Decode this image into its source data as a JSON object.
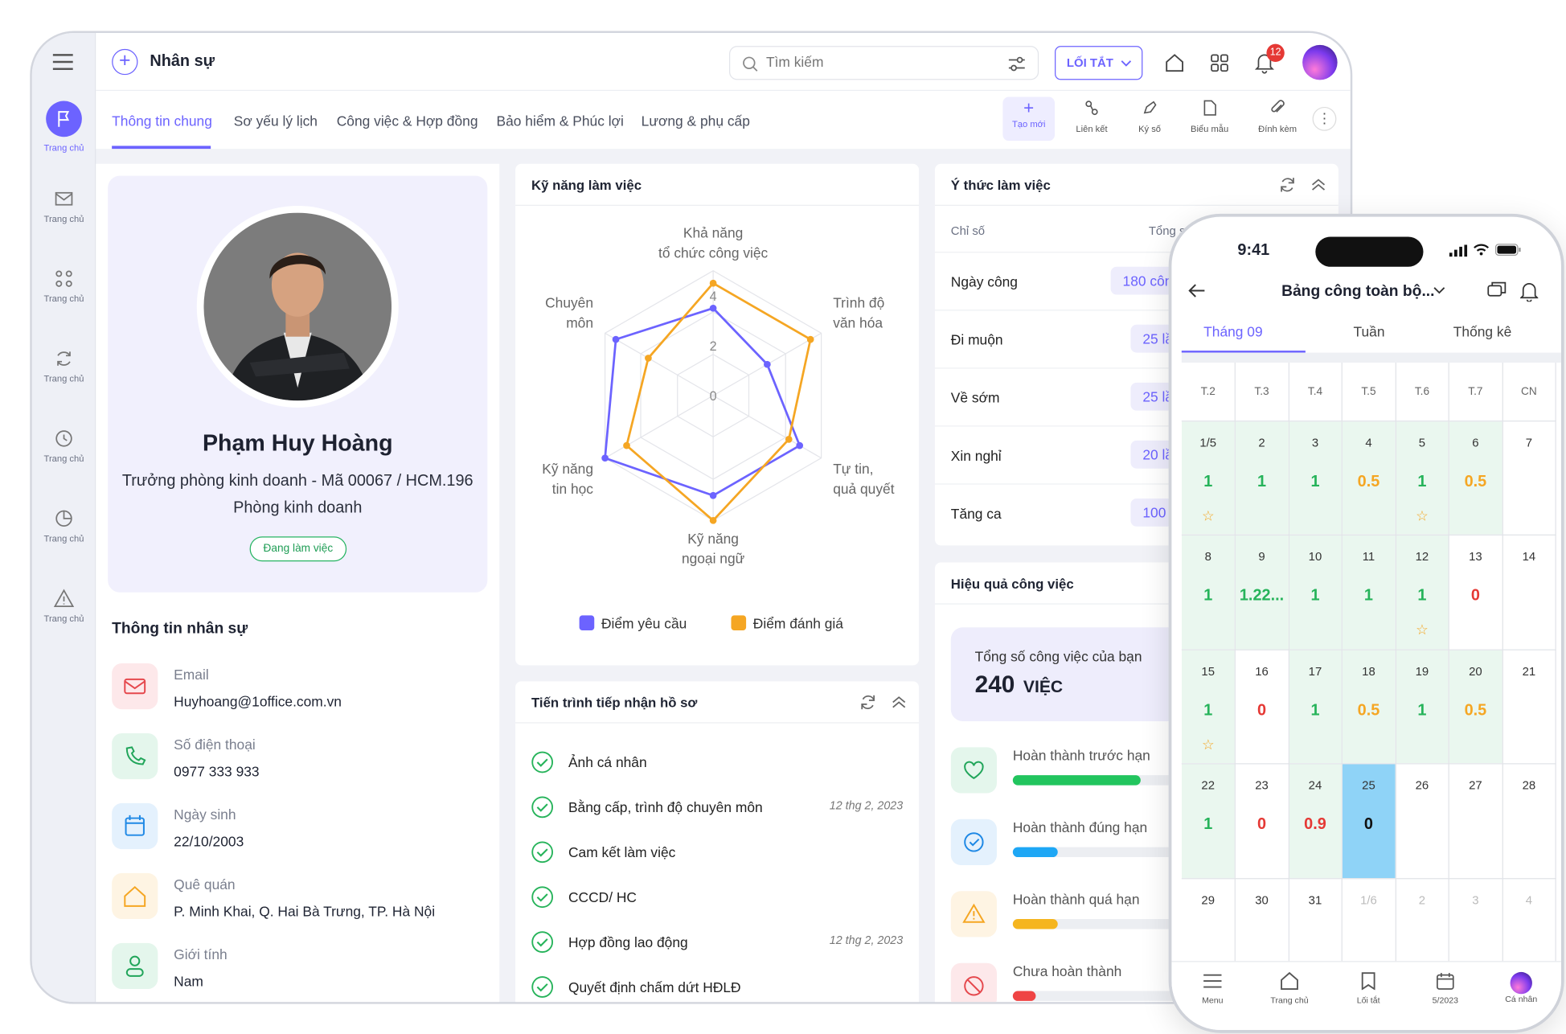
{
  "app": {
    "title": "Nhân sự",
    "search_placeholder": "Tìm kiếm",
    "shortcut_label": "LỐI TẮT",
    "notif_count": "12"
  },
  "sidebar": {
    "items": [
      {
        "label": "Trang chủ",
        "icon": "flag-icon"
      },
      {
        "label": "Trang chủ",
        "icon": "mail-check-icon"
      },
      {
        "label": "Trang chủ",
        "icon": "nodes-icon"
      },
      {
        "label": "Trang chủ",
        "icon": "refresh-icon"
      },
      {
        "label": "Trang chủ",
        "icon": "clock-icon"
      },
      {
        "label": "Trang chủ",
        "icon": "pie-icon"
      },
      {
        "label": "Trang chủ",
        "icon": "warning-icon"
      }
    ]
  },
  "tabs": [
    "Thông tin chung",
    "Sơ yếu lý lịch",
    "Công việc & Hợp đồng",
    "Bảo hiểm & Phúc lợi",
    "Lương & phụ cấp"
  ],
  "actions": [
    "Tạo mới",
    "Liên kết",
    "Ký số",
    "Biểu mẫu",
    "Đính kèm"
  ],
  "profile": {
    "name": "Phạm Huy Hoàng",
    "role": "Trưởng phòng kinh doanh - Mã 00067 / HCM.196",
    "dept": "Phòng kinh doanh",
    "status": "Đang làm việc"
  },
  "info": {
    "title": "Thông tin nhân sự",
    "fields": [
      {
        "label": "Email",
        "value": "Huyhoang@1office.com.vn"
      },
      {
        "label": "Số điện thoại",
        "value": "0977 333 933"
      },
      {
        "label": "Ngày sinh",
        "value": "22/10/2003"
      },
      {
        "label": "Quê quán",
        "value": "P. Minh Khai, Q. Hai Bà Trưng, TP. Hà Nội"
      },
      {
        "label": "Giới tính",
        "value": "Nam"
      }
    ]
  },
  "skills": {
    "title": "Kỹ năng làm việc",
    "legend": [
      "Điểm yêu cầu",
      "Điểm đánh giá"
    ]
  },
  "chart_data": {
    "type": "radar",
    "categories": [
      "Khả năng tổ chức công việc",
      "Trình độ văn hóa",
      "Tự tin, quả quyết",
      "Kỹ năng ngoại ngữ",
      "Kỹ năng tin học",
      "Chuyên môn"
    ],
    "category_lines": [
      [
        "Khả năng",
        "tổ chức công việc"
      ],
      [
        "Trình độ",
        "văn hóa"
      ],
      [
        "Tự tin,",
        "quả quyết"
      ],
      [
        "Kỹ năng",
        "ngoại ngữ"
      ],
      [
        "Kỹ năng",
        "tin học"
      ],
      [
        "Chuyên",
        "môn"
      ]
    ],
    "ticks": [
      "0",
      "2",
      "4"
    ],
    "rmax": 5,
    "series": [
      {
        "name": "Điểm yêu cầu",
        "color": "#6c63ff",
        "values": [
          3.5,
          2.5,
          4,
          4,
          5,
          4.5
        ]
      },
      {
        "name": "Điểm đánh giá",
        "color": "#f5a623",
        "values": [
          4.5,
          4.5,
          3.5,
          5,
          4,
          3
        ]
      }
    ]
  },
  "process": {
    "title": "Tiến trình tiếp nhận hồ sơ",
    "items": [
      {
        "label": "Ảnh cá nhân",
        "date": ""
      },
      {
        "label": "Bằng cấp, trình độ chuyên môn",
        "date": "12 thg 2, 2023"
      },
      {
        "label": "Cam kết làm việc",
        "date": ""
      },
      {
        "label": "CCCD/ HC",
        "date": ""
      },
      {
        "label": "Hợp đồng lao động",
        "date": "12 thg 2, 2023"
      },
      {
        "label": "Quyết định chấm dứt HĐLĐ",
        "date": ""
      }
    ]
  },
  "attitude": {
    "title": "Ý thức làm việc",
    "col1": "Chỉ số",
    "col2": "Tổng số",
    "rows": [
      {
        "label": "Ngày công",
        "value": "180 công"
      },
      {
        "label": "Đi muộn",
        "value": "25 lần"
      },
      {
        "label": "Về sớm",
        "value": "25 lần"
      },
      {
        "label": "Xin nghỉ",
        "value": "20 lần"
      },
      {
        "label": "Tăng ca",
        "value": "100 giờ"
      }
    ]
  },
  "performance": {
    "title": "Hiệu quả công việc",
    "total_label": "Tổng số công việc của bạn",
    "total": "240",
    "unit": "VIỆC",
    "rows": [
      {
        "label": "Hoàn thành trước hạn",
        "progress": 0.85,
        "color": "#22c55e"
      },
      {
        "label": "Hoàn thành đúng hạn",
        "progress": 0.3,
        "color": "#1ea7f5"
      },
      {
        "label": "Hoàn thành quá hạn",
        "progress": 0.3,
        "color": "#f5b51f"
      },
      {
        "label": "Chưa hoàn thành",
        "progress": 0.15,
        "color": "#ef4444"
      }
    ]
  },
  "phone": {
    "time": "9:41",
    "title": "Bảng công toàn bộ...",
    "tabs": [
      "Tháng 09",
      "Tuần",
      "Thống kê"
    ],
    "weekdays": [
      "T.2",
      "T.3",
      "T.4",
      "T.5",
      "T.6",
      "T.7",
      "CN"
    ],
    "weeks": [
      [
        {
          "d": "1/5",
          "v": "1",
          "c": "green",
          "s": true
        },
        {
          "d": "2",
          "v": "1",
          "c": "green"
        },
        {
          "d": "3",
          "v": "1",
          "c": "green"
        },
        {
          "d": "4",
          "v": "0.5",
          "c": "orange"
        },
        {
          "d": "5",
          "v": "1",
          "c": "green",
          "s": true
        },
        {
          "d": "6",
          "v": "0.5",
          "c": "orange"
        },
        {
          "d": "7",
          "v": "",
          "c": "",
          "w": true
        }
      ],
      [
        {
          "d": "8",
          "v": "1",
          "c": "green"
        },
        {
          "d": "9",
          "v": "1.22...",
          "c": "green"
        },
        {
          "d": "10",
          "v": "1",
          "c": "green"
        },
        {
          "d": "11",
          "v": "1",
          "c": "green"
        },
        {
          "d": "12",
          "v": "1",
          "c": "green",
          "s": true
        },
        {
          "d": "13",
          "v": "0",
          "c": "red",
          "w": true
        },
        {
          "d": "14",
          "v": "",
          "c": "",
          "w": true
        }
      ],
      [
        {
          "d": "15",
          "v": "1",
          "c": "green",
          "s": true
        },
        {
          "d": "16",
          "v": "0",
          "c": "red",
          "w": true
        },
        {
          "d": "17",
          "v": "1",
          "c": "green"
        },
        {
          "d": "18",
          "v": "0.5",
          "c": "orange"
        },
        {
          "d": "19",
          "v": "1",
          "c": "green"
        },
        {
          "d": "20",
          "v": "0.5",
          "c": "orange"
        },
        {
          "d": "21",
          "v": "",
          "c": "",
          "w": true
        }
      ],
      [
        {
          "d": "22",
          "v": "1",
          "c": "green"
        },
        {
          "d": "23",
          "v": "0",
          "c": "red",
          "w": true
        },
        {
          "d": "24",
          "v": "0.9",
          "c": "red"
        },
        {
          "d": "25",
          "v": "0",
          "c": "dark",
          "today": true
        },
        {
          "d": "26",
          "v": "",
          "c": "",
          "w": true
        },
        {
          "d": "27",
          "v": "",
          "c": "",
          "w": true
        },
        {
          "d": "28",
          "v": "",
          "c": "",
          "w": true
        }
      ],
      [
        {
          "d": "29",
          "v": "",
          "c": "",
          "w": true
        },
        {
          "d": "30",
          "v": "",
          "c": "",
          "w": true
        },
        {
          "d": "31",
          "v": "",
          "c": "",
          "w": true
        },
        {
          "d": "1/6",
          "v": "",
          "c": "",
          "w": true,
          "m": true
        },
        {
          "d": "2",
          "v": "",
          "c": "",
          "w": true,
          "m": true
        },
        {
          "d": "3",
          "v": "",
          "c": "",
          "w": true,
          "m": true
        },
        {
          "d": "4",
          "v": "",
          "c": "",
          "w": true,
          "m": true
        }
      ]
    ],
    "bottom": [
      "Menu",
      "Trang chủ",
      "Lối tắt",
      "5/2023",
      "Cá nhân"
    ]
  }
}
